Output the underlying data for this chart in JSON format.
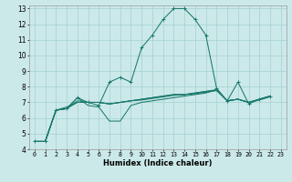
{
  "xlabel": "Humidex (Indice chaleur)",
  "bg_color": "#cce9e9",
  "grid_color": "#aad4d4",
  "line_color": "#1a7a6e",
  "xlim": [
    -0.5,
    23.5
  ],
  "ylim": [
    4,
    13.2
  ],
  "xticks": [
    0,
    1,
    2,
    3,
    4,
    5,
    6,
    7,
    8,
    9,
    10,
    11,
    12,
    13,
    14,
    15,
    16,
    17,
    18,
    19,
    20,
    21,
    22,
    23
  ],
  "yticks": [
    4,
    5,
    6,
    7,
    8,
    9,
    10,
    11,
    12,
    13
  ],
  "curves": [
    {
      "y": [
        4.5,
        4.5,
        6.5,
        6.6,
        7.3,
        7.0,
        6.8,
        8.3,
        8.6,
        8.3,
        10.5,
        11.3,
        12.3,
        13.0,
        13.0,
        12.3,
        11.3,
        7.9,
        7.1,
        8.3,
        6.9,
        7.2,
        7.4
      ],
      "marker": "+"
    },
    {
      "y": [
        4.5,
        4.5,
        6.5,
        6.6,
        7.3,
        6.8,
        6.7,
        5.8,
        5.8,
        6.8,
        7.0,
        7.1,
        7.2,
        7.3,
        7.4,
        7.5,
        7.6,
        7.8,
        7.1,
        7.2,
        7.0,
        7.2,
        7.4
      ],
      "marker": null
    },
    {
      "y": [
        4.5,
        4.5,
        6.5,
        6.6,
        7.1,
        7.0,
        7.0,
        6.9,
        7.0,
        7.1,
        7.2,
        7.3,
        7.4,
        7.5,
        7.5,
        7.6,
        7.7,
        7.8,
        7.1,
        7.2,
        7.0,
        7.2,
        7.4
      ],
      "marker": null
    },
    {
      "y": [
        4.5,
        4.5,
        6.5,
        6.6,
        7.0,
        7.0,
        7.0,
        6.9,
        7.0,
        7.1,
        7.2,
        7.3,
        7.4,
        7.5,
        7.5,
        7.6,
        7.7,
        7.8,
        7.1,
        7.2,
        7.0,
        7.2,
        7.4
      ],
      "marker": null
    },
    {
      "y": [
        4.5,
        4.5,
        6.5,
        6.7,
        7.0,
        7.0,
        7.0,
        6.9,
        7.0,
        7.1,
        7.15,
        7.25,
        7.35,
        7.45,
        7.5,
        7.55,
        7.65,
        7.75,
        7.1,
        7.2,
        7.0,
        7.15,
        7.35
      ],
      "marker": null
    }
  ]
}
